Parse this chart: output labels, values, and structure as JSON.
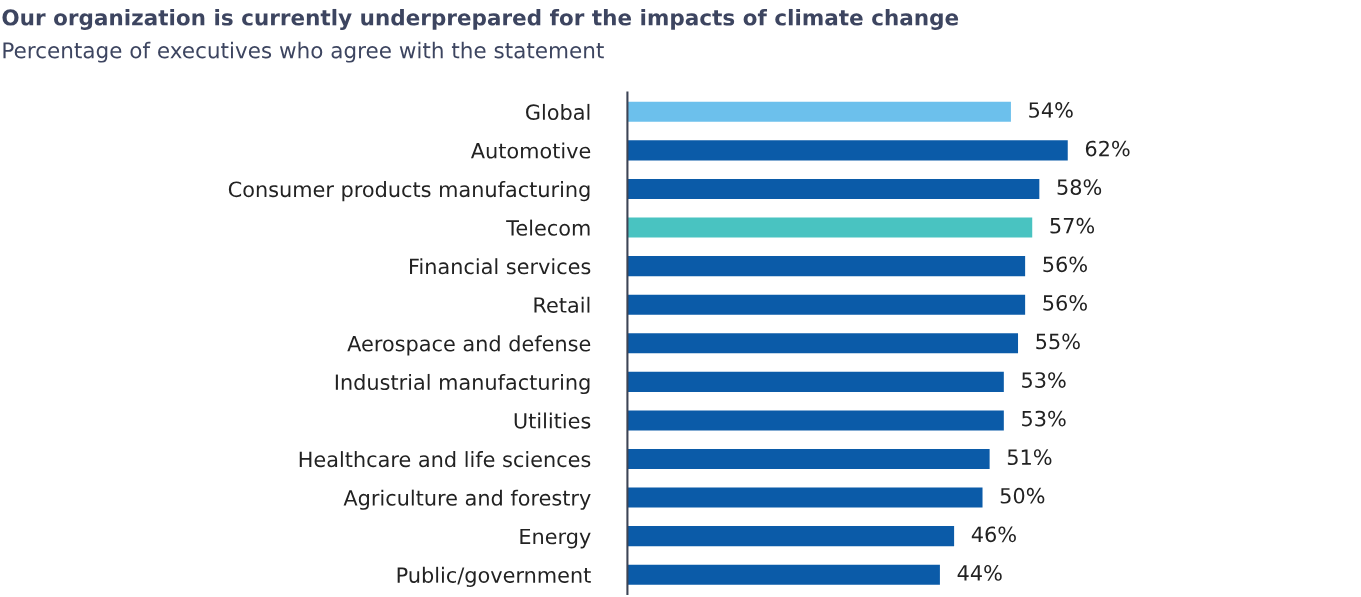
{
  "chart_data": {
    "type": "bar",
    "orientation": "horizontal",
    "title": "Our organization is currently underprepared for the impacts of climate change",
    "subtitle": "Percentage of executives who agree with the statement",
    "categories": [
      "Global",
      "Automotive",
      "Consumer products manufacturing",
      "Telecom",
      "Financial services",
      "Retail",
      "Aerospace and defense",
      "Industrial manufacturing",
      "Utilities",
      "Healthcare and life sciences",
      "Agriculture and forestry",
      "Energy",
      "Public/government"
    ],
    "values": [
      54,
      62,
      58,
      57,
      56,
      56,
      55,
      53,
      53,
      51,
      50,
      46,
      44
    ],
    "colors": [
      "#6cc0ec",
      "#0b5ba8",
      "#0b5ba8",
      "#49c3c1",
      "#0b5ba8",
      "#0b5ba8",
      "#0b5ba8",
      "#0b5ba8",
      "#0b5ba8",
      "#0b5ba8",
      "#0b5ba8",
      "#0b5ba8",
      "#0b5ba8"
    ],
    "value_labels": [
      "54%",
      "62%",
      "58%",
      "57%",
      "56%",
      "56%",
      "55%",
      "53%",
      "53%",
      "51%",
      "50%",
      "46%",
      "44%"
    ],
    "grid": false,
    "legend": false
  }
}
